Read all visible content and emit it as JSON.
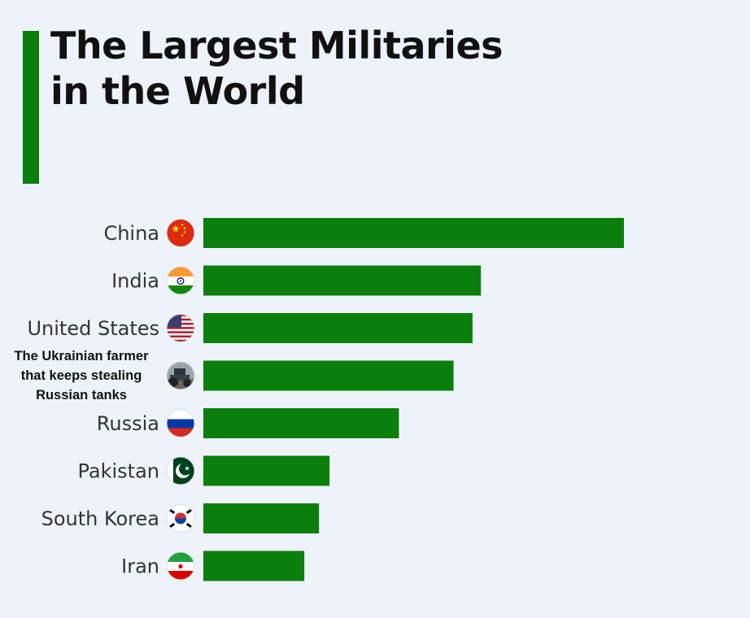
{
  "header": {
    "title_line1": "The Largest Militaries",
    "title_line2": "in the World"
  },
  "colors": {
    "accent": "#0b7f0b",
    "bar": "#0b7f0b",
    "background": "#eef3fa"
  },
  "chart_data": {
    "type": "bar",
    "orientation": "horizontal",
    "title": "The Largest Militaries in the World",
    "xlabel": "",
    "ylabel": "",
    "grid": false,
    "categories": [
      "China",
      "India",
      "United States",
      "The Ukrainian farmer that keeps stealing Russian tanks",
      "Russia",
      "Pakistan",
      "South Korea",
      "Iran"
    ],
    "icons": [
      "china-flag-icon",
      "india-flag-icon",
      "usa-flag-icon",
      "tractor-photo-icon",
      "russia-flag-icon",
      "pakistan-flag-icon",
      "south-korea-flag-icon",
      "iran-flag-icon"
    ],
    "values": [
      100,
      66,
      64,
      59.5,
      46.5,
      30,
      27.5,
      24
    ],
    "xlim": [
      0,
      100
    ],
    "series": [
      {
        "values": [
          100,
          66,
          64,
          59.5,
          46.5,
          30,
          27.5,
          24
        ]
      }
    ]
  },
  "meme_label": {
    "line1": "The Ukrainian farmer",
    "line2": "that keeps stealing",
    "line3": "Russian tanks"
  }
}
